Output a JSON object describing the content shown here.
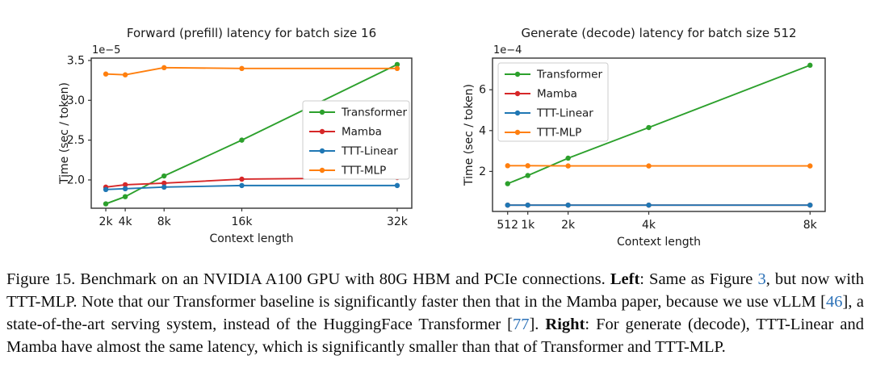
{
  "caption": {
    "segments": [
      {
        "text": "Figure 15. Benchmark on an NVIDIA A100 GPU with 80G HBM and PCIe connections. ",
        "style": "normal"
      },
      {
        "text": "Left",
        "style": "bold"
      },
      {
        "text": ": Same as Figure ",
        "style": "normal"
      },
      {
        "text": "3",
        "style": "link"
      },
      {
        "text": ", but now with TTT-MLP. Note that our Transformer baseline is significantly faster then that in the Mamba paper, because we use vLLM [",
        "style": "normal"
      },
      {
        "text": "46",
        "style": "link"
      },
      {
        "text": "], a state-of-the-art serving system, instead of the HuggingFace Transformer [",
        "style": "normal"
      },
      {
        "text": "77",
        "style": "link"
      },
      {
        "text": "]. ",
        "style": "normal"
      },
      {
        "text": "Right",
        "style": "bold"
      },
      {
        "text": ": For generate (decode), TTT-Linear and Mamba have almost the same latency, which is significantly smaller than that of Transformer and TTT-MLP.",
        "style": "normal"
      }
    ]
  },
  "colors": {
    "link_blue": "#2d72b8",
    "axis_text": "#1a1a1a",
    "spine": "#333333",
    "legend_border": "#cccccc"
  },
  "chart_data": [
    {
      "type": "line",
      "title": "Forward (prefill) latency for batch size 16",
      "xlabel": "Context length",
      "ylabel": "Time (sec / token)",
      "y_offset_label": "1e−5",
      "x": [
        2048,
        4096,
        8192,
        16384,
        32768
      ],
      "xtick_labels": [
        "2k",
        "4k",
        "8k",
        "16k",
        "32k"
      ],
      "yticks": [
        2.0,
        2.5,
        3.0,
        3.5
      ],
      "ytick_labels": [
        "2.0",
        "2.5",
        "3.0",
        "3.5"
      ],
      "xlim": [
        512,
        34304
      ],
      "ylim": [
        1.645,
        3.53
      ],
      "grid": false,
      "legend_position": "center right",
      "series": [
        {
          "name": "Transformer",
          "color": "#2ca02c",
          "values": [
            1.7,
            1.79,
            2.05,
            2.5,
            3.45
          ]
        },
        {
          "name": "Mamba",
          "color": "#d62728",
          "values": [
            1.91,
            1.94,
            1.96,
            2.01,
            2.03
          ]
        },
        {
          "name": "TTT-Linear",
          "color": "#1f77b4",
          "values": [
            1.88,
            1.89,
            1.91,
            1.93,
            1.93
          ]
        },
        {
          "name": "TTT-MLP",
          "color": "#ff7f0e",
          "values": [
            3.33,
            3.32,
            3.41,
            3.4,
            3.4
          ]
        }
      ]
    },
    {
      "type": "line",
      "title": "Generate (decode) latency for batch size 512",
      "xlabel": "Context length",
      "ylabel": "Time (sec / token)",
      "y_offset_label": "1e−4",
      "x": [
        512,
        1024,
        2048,
        4096,
        8192
      ],
      "xtick_labels": [
        "512",
        "1k",
        "2k",
        "4k",
        "8k"
      ],
      "yticks": [
        2,
        4,
        6
      ],
      "ytick_labels": [
        "2",
        "4",
        "6"
      ],
      "xlim": [
        128,
        8576
      ],
      "ylim": [
        0.04,
        7.55
      ],
      "grid": false,
      "legend_position": "upper left",
      "series": [
        {
          "name": "Transformer",
          "color": "#2ca02c",
          "values": [
            1.4,
            1.8,
            2.65,
            4.15,
            7.2
          ]
        },
        {
          "name": "Mamba",
          "color": "#d62728",
          "values": [
            0.35,
            0.35,
            0.35,
            0.35,
            0.35
          ]
        },
        {
          "name": "TTT-Linear",
          "color": "#1f77b4",
          "values": [
            0.35,
            0.35,
            0.35,
            0.35,
            0.35
          ]
        },
        {
          "name": "TTT-MLP",
          "color": "#ff7f0e",
          "values": [
            2.28,
            2.28,
            2.27,
            2.27,
            2.27
          ]
        }
      ]
    }
  ]
}
